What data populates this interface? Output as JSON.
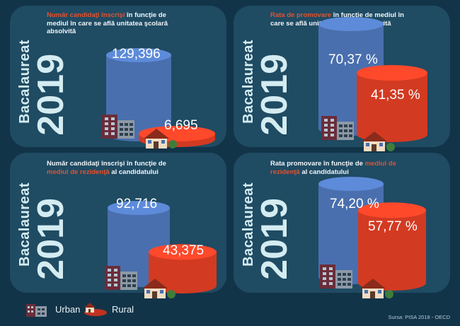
{
  "side_title": {
    "word": "Bacalaureat",
    "year": "2019"
  },
  "colors": {
    "urban": "#4a6fae",
    "rural": "#d33a22",
    "highlight": "#e3522f",
    "panel": "#1f4b63",
    "background": "#123449"
  },
  "chart_data": [
    {
      "type": "bar",
      "title_parts": [
        {
          "text": "Număr candidaţi înscrişi",
          "highlight": true
        },
        {
          "text": " în funcţie de mediul în care se află unitatea şcolară absolvită",
          "highlight": false
        }
      ],
      "categories": [
        "Urban",
        "Rural"
      ],
      "values": [
        129396,
        6695
      ],
      "labels": [
        "129,396",
        "6,695"
      ]
    },
    {
      "type": "bar",
      "title_parts": [
        {
          "text": "Rata de promovare",
          "highlight": true
        },
        {
          "text": " în funcţie de mediul în care se află unitatea şcolară absolvită",
          "highlight": false
        }
      ],
      "categories": [
        "Urban",
        "Rural"
      ],
      "values": [
        70.37,
        41.35
      ],
      "labels": [
        "70,37 %",
        "41,35 %"
      ]
    },
    {
      "type": "bar",
      "title_parts": [
        {
          "text": "Număr candidaţi înscrişi în funcţie de ",
          "highlight": false
        },
        {
          "text": "mediul de rezidenţă",
          "highlight": true
        },
        {
          "text": " al candidatului",
          "highlight": false
        }
      ],
      "categories": [
        "Urban",
        "Rural"
      ],
      "values": [
        92716,
        43375
      ],
      "labels": [
        "92,716",
        "43,375"
      ]
    },
    {
      "type": "bar",
      "title_parts": [
        {
          "text": "Rata promovare în funcţie de ",
          "highlight": false
        },
        {
          "text": "mediul de rezidenţă",
          "highlight": true
        },
        {
          "text": " al candidatului",
          "highlight": false
        }
      ],
      "categories": [
        "Urban",
        "Rural"
      ],
      "values": [
        74.2,
        57.77
      ],
      "labels": [
        "74,20 %",
        "57,77 %"
      ]
    }
  ],
  "legend": {
    "urban": "Urban",
    "rural": "Rural"
  },
  "source": "Sursa: PISA 2018 - OECD"
}
